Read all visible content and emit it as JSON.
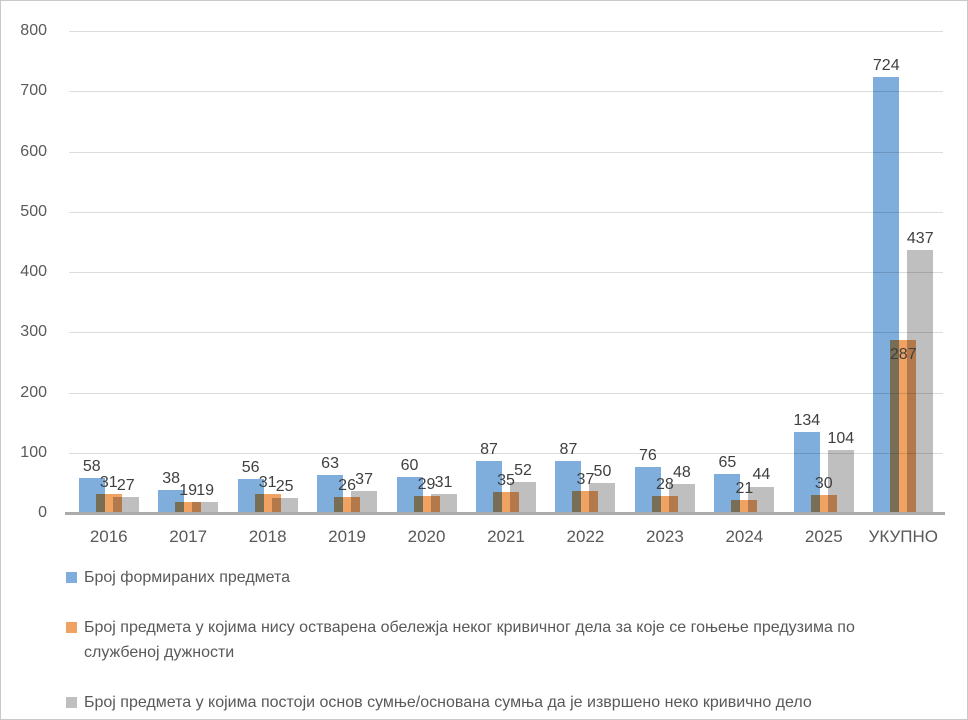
{
  "chart_data": {
    "type": "bar",
    "title": "",
    "categories": [
      "2016",
      "2017",
      "2018",
      "2019",
      "2020",
      "2021",
      "2022",
      "2023",
      "2024",
      "2025",
      "УКУПНО"
    ],
    "series": [
      {
        "name": "Број формираних предмета",
        "color": "#7faddc",
        "values": [
          58,
          38,
          56,
          63,
          60,
          87,
          87,
          76,
          65,
          134,
          724
        ]
      },
      {
        "name": "Број предмета у којима нису остварена обележја неког кривичног дела за које се гоњење предузима по службеној дужности",
        "color": "#f0a263",
        "values": [
          31,
          19,
          31,
          26,
          29,
          35,
          37,
          28,
          21,
          30,
          287
        ],
        "label_y_offsets": [
          0,
          0,
          0,
          0,
          0,
          0,
          0,
          0,
          0,
          0,
          26
        ]
      },
      {
        "name": "Број предмета у којима постоји основ сумње/основана сумња да је извршено неко кривично дело",
        "color": "#bfbfbf",
        "values": [
          27,
          19,
          25,
          37,
          31,
          52,
          50,
          48,
          44,
          104,
          437
        ]
      }
    ],
    "ylim": [
      0,
      800
    ],
    "ytick_step": 100,
    "yticks": [
      "0",
      "100",
      "200",
      "300",
      "400",
      "500",
      "600",
      "700",
      "800"
    ],
    "grid": true,
    "legend_position": "bottom",
    "colors": {
      "grid_line": "#dcdcdc",
      "baseline": "#ababab",
      "tick_text": "#595959",
      "value_label_text": "#3f3f3f",
      "frame_border": "#c9c9c9"
    }
  }
}
